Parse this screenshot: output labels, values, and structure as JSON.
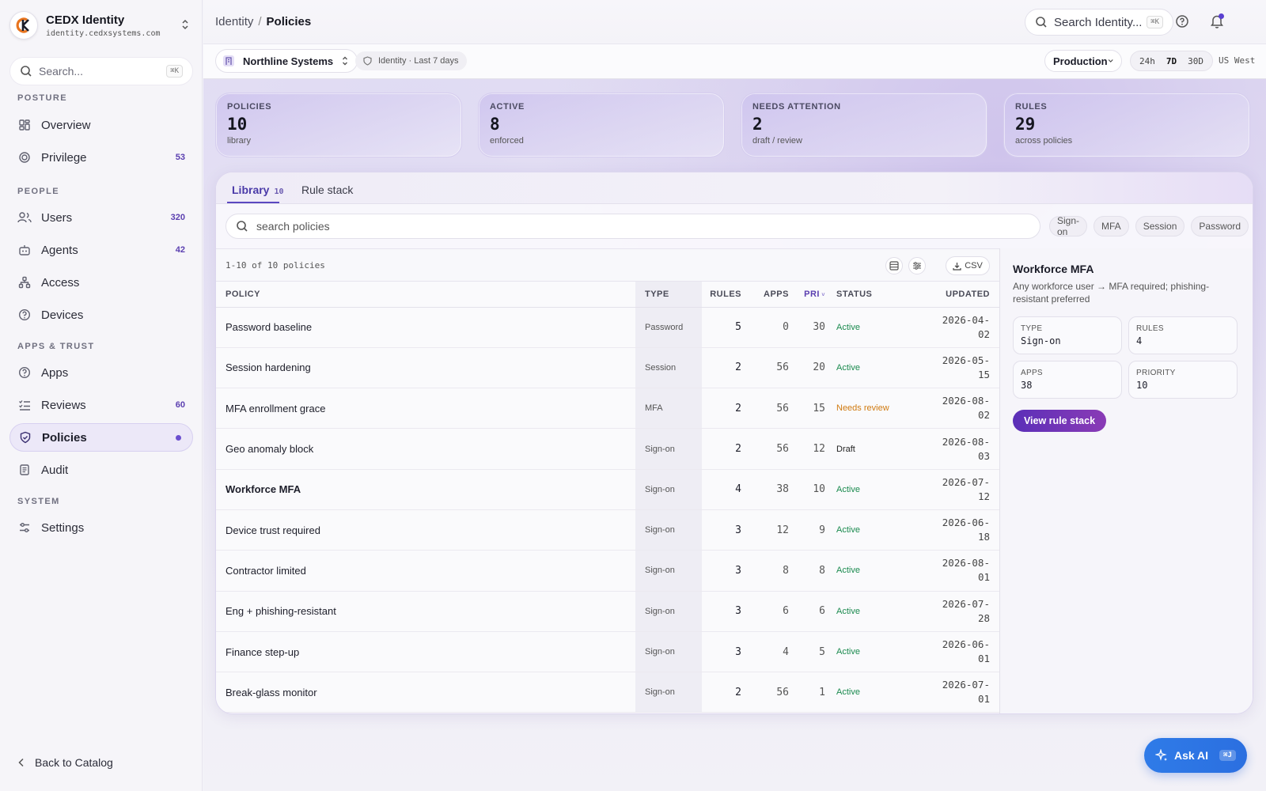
{
  "brand": {
    "name": "CEDX Identity",
    "domain": "identity.cedxsystems.com"
  },
  "sidebar": {
    "search_placeholder": "Search...",
    "search_kbd": "⌘K",
    "sections": {
      "posture": "POSTURE",
      "people": "PEOPLE",
      "apps_trust": "APPS & TRUST",
      "system": "SYSTEM"
    },
    "items": [
      {
        "label": "Overview",
        "count": ""
      },
      {
        "label": "Privilege",
        "count": "53"
      },
      {
        "label": "Users",
        "count": "320"
      },
      {
        "label": "Agents",
        "count": "42"
      },
      {
        "label": "Access",
        "count": ""
      },
      {
        "label": "Devices",
        "count": ""
      },
      {
        "label": "Apps",
        "count": ""
      },
      {
        "label": "Reviews",
        "count": "60"
      },
      {
        "label": "Policies",
        "count": ""
      },
      {
        "label": "Audit",
        "count": ""
      },
      {
        "label": "Settings",
        "count": ""
      }
    ],
    "back_label": "Back to Catalog"
  },
  "header": {
    "breadcrumb_root": "Identity",
    "breadcrumb_sep": "/",
    "breadcrumb_current": "Policies",
    "search_placeholder": "Search Identity...",
    "search_kbd": "⌘K"
  },
  "context": {
    "org": "Northline Systems",
    "scope": "Identity · Last 7 days",
    "environment": "Production",
    "ranges": [
      "24h",
      "7D",
      "30D"
    ],
    "selected_range": "7D",
    "region": "US West"
  },
  "stats": [
    {
      "label": "POLICIES",
      "value": "10",
      "sub": "library"
    },
    {
      "label": "ACTIVE",
      "value": "8",
      "sub": "enforced"
    },
    {
      "label": "NEEDS ATTENTION",
      "value": "2",
      "sub": "draft / review"
    },
    {
      "label": "RULES",
      "value": "29",
      "sub": "across policies"
    }
  ],
  "tabs": {
    "library": "Library",
    "library_count": "10",
    "rule_stack": "Rule stack"
  },
  "policy_search_placeholder": "search policies",
  "filter_chips": [
    "Sign-on",
    "MFA",
    "Session",
    "Password"
  ],
  "table": {
    "count_label": "1-10 of 10 policies",
    "csv_label": "CSV",
    "columns": {
      "policy": "POLICY",
      "type": "TYPE",
      "rules": "RULES",
      "apps": "APPS",
      "pri": "PRI",
      "status": "STATUS",
      "updated": "UPDATED"
    },
    "rows": [
      {
        "policy": "Password baseline",
        "type": "Password",
        "rules": "5",
        "apps": "0",
        "pri": "30",
        "status": "Active",
        "updated_y": "2026-04-",
        "updated_d": "02"
      },
      {
        "policy": "Session hardening",
        "type": "Session",
        "rules": "2",
        "apps": "56",
        "pri": "20",
        "status": "Active",
        "updated_y": "2026-05-",
        "updated_d": "15"
      },
      {
        "policy": "MFA enrollment grace",
        "type": "MFA",
        "rules": "2",
        "apps": "56",
        "pri": "15",
        "status": "Needs review",
        "updated_y": "2026-08-",
        "updated_d": "02"
      },
      {
        "policy": "Geo anomaly block",
        "type": "Sign-on",
        "rules": "2",
        "apps": "56",
        "pri": "12",
        "status": "Draft",
        "updated_y": "2026-08-",
        "updated_d": "03"
      },
      {
        "policy": "Workforce MFA",
        "type": "Sign-on",
        "rules": "4",
        "apps": "38",
        "pri": "10",
        "status": "Active",
        "updated_y": "2026-07-",
        "updated_d": "12"
      },
      {
        "policy": "Device trust required",
        "type": "Sign-on",
        "rules": "3",
        "apps": "12",
        "pri": "9",
        "status": "Active",
        "updated_y": "2026-06-",
        "updated_d": "18"
      },
      {
        "policy": "Contractor limited",
        "type": "Sign-on",
        "rules": "3",
        "apps": "8",
        "pri": "8",
        "status": "Active",
        "updated_y": "2026-08-",
        "updated_d": "01"
      },
      {
        "policy": "Eng + phishing-resistant",
        "type": "Sign-on",
        "rules": "3",
        "apps": "6",
        "pri": "6",
        "status": "Active",
        "updated_y": "2026-07-",
        "updated_d": "28"
      },
      {
        "policy": "Finance step-up",
        "type": "Sign-on",
        "rules": "3",
        "apps": "4",
        "pri": "5",
        "status": "Active",
        "updated_y": "2026-06-",
        "updated_d": "01"
      },
      {
        "policy": "Break-glass monitor",
        "type": "Sign-on",
        "rules": "2",
        "apps": "56",
        "pri": "1",
        "status": "Active",
        "updated_y": "2026-07-",
        "updated_d": "01"
      }
    ]
  },
  "detail": {
    "title": "Workforce MFA",
    "description": "Any workforce user → MFA required; phishing-resistant preferred",
    "type_label": "TYPE",
    "type_value": "Sign-on",
    "rules_label": "RULES",
    "rules_value": "4",
    "apps_label": "APPS",
    "apps_value": "38",
    "priority_label": "PRIORITY",
    "priority_value": "10",
    "button": "View rule stack"
  },
  "ask_ai": {
    "label": "Ask AI",
    "kbd": "⌘J"
  },
  "colors": {
    "accent": "#5b48c0",
    "active_status": "#1a8a4e",
    "review_status": "#d07a10",
    "ask_ai": "#2f7be8"
  }
}
